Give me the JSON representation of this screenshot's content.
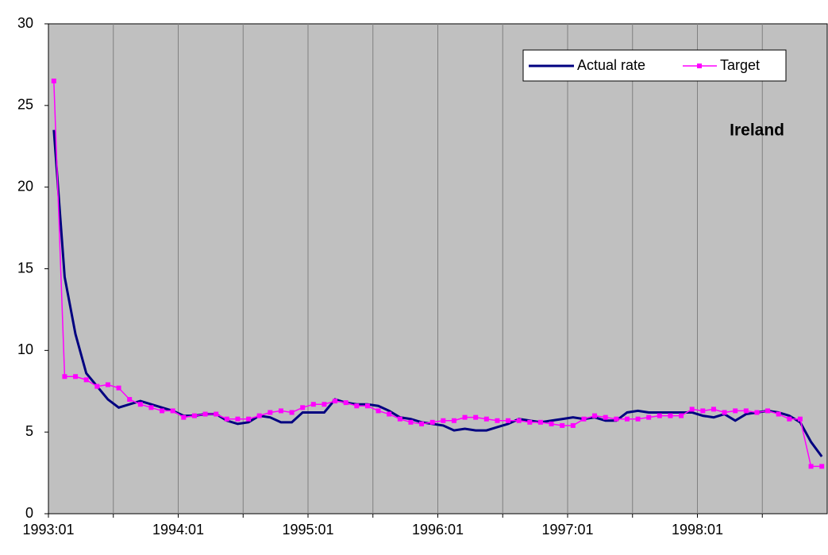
{
  "chart_data": {
    "type": "line",
    "annotation": "Ireland",
    "categories": [
      "1993:01",
      null,
      null,
      null,
      null,
      null,
      null,
      null,
      null,
      null,
      null,
      null,
      "1994:01",
      null,
      null,
      null,
      null,
      null,
      null,
      null,
      null,
      null,
      null,
      null,
      "1995:01",
      null,
      null,
      null,
      null,
      null,
      null,
      null,
      null,
      null,
      null,
      null,
      "1996:01",
      null,
      null,
      null,
      null,
      null,
      null,
      null,
      null,
      null,
      null,
      null,
      "1997:01",
      null,
      null,
      null,
      null,
      null,
      null,
      null,
      null,
      null,
      null,
      null,
      "1998:01",
      null,
      null,
      null,
      null,
      null,
      null,
      null,
      null,
      null,
      null,
      null
    ],
    "series": [
      {
        "name": "Actual rate",
        "color": "#000080",
        "values": [
          23.5,
          14.5,
          11,
          8.6,
          7.8,
          7.0,
          6.5,
          6.7,
          6.9,
          6.7,
          6.5,
          6.3,
          6.0,
          6.0,
          6.1,
          6.1,
          5.7,
          5.5,
          5.6,
          6.0,
          5.9,
          5.6,
          5.6,
          6.2,
          6.2,
          6.2,
          7.0,
          6.8,
          6.7,
          6.7,
          6.6,
          6.3,
          5.9,
          5.8,
          5.6,
          5.5,
          5.4,
          5.1,
          5.2,
          5.1,
          5.1,
          5.3,
          5.5,
          5.8,
          5.7,
          5.6,
          5.7,
          5.8,
          5.9,
          5.8,
          5.9,
          5.7,
          5.7,
          6.2,
          6.3,
          6.2,
          6.2,
          6.2,
          6.2,
          6.2,
          6.0,
          5.9,
          6.1,
          5.7,
          6.1,
          6.2,
          6.3,
          6.2,
          6.0,
          5.6,
          4.4,
          3.5
        ]
      },
      {
        "name": "Target",
        "color": "#ff00ff",
        "values": [
          26.5,
          8.4,
          8.4,
          8.2,
          7.8,
          7.9,
          7.7,
          7.0,
          6.7,
          6.5,
          6.3,
          6.3,
          5.9,
          6.0,
          6.1,
          6.1,
          5.8,
          5.8,
          5.8,
          6.0,
          6.2,
          6.3,
          6.2,
          6.5,
          6.7,
          6.7,
          6.9,
          6.8,
          6.6,
          6.6,
          6.3,
          6.1,
          5.8,
          5.6,
          5.5,
          5.6,
          5.7,
          5.7,
          5.9,
          5.9,
          5.8,
          5.7,
          5.7,
          5.7,
          5.6,
          5.6,
          5.5,
          5.4,
          5.4,
          5.8,
          6.0,
          5.9,
          5.8,
          5.8,
          5.8,
          5.9,
          6.0,
          6.0,
          6.0,
          6.4,
          6.3,
          6.4,
          6.2,
          6.3,
          6.3,
          6.2,
          6.3,
          6.1,
          5.8,
          5.8,
          2.9,
          2.9
        ]
      }
    ],
    "ylim": [
      0,
      30
    ],
    "yticks": [
      0,
      5,
      10,
      15,
      20,
      25,
      30
    ],
    "grid": true
  }
}
